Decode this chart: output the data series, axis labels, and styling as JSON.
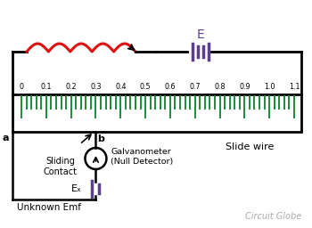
{
  "bg_color": "#ffffff",
  "wire_color": "#000000",
  "resistor_color": "#dd1111",
  "battery_color": "#5b3f8c",
  "tick_color": "#1a8a3a",
  "scale_labels": [
    "0",
    "0.1",
    "0.2",
    "0.3",
    "0.4",
    "0.5",
    "0.6",
    "0.7",
    "0.8",
    "0.9",
    "1.0",
    "1.1"
  ],
  "label_a": "a",
  "label_b": "b",
  "label_E": "E",
  "label_Ex": "Eₓ",
  "label_sliding": "Sliding\nContact",
  "label_galv": "Galvanometer\n(Null Detector)",
  "label_slide_wire": "Slide wire",
  "label_unknown": "Unknown Emf",
  "label_circuit_globe": "Circuit Globe",
  "gray_text": "#aaaaaa"
}
